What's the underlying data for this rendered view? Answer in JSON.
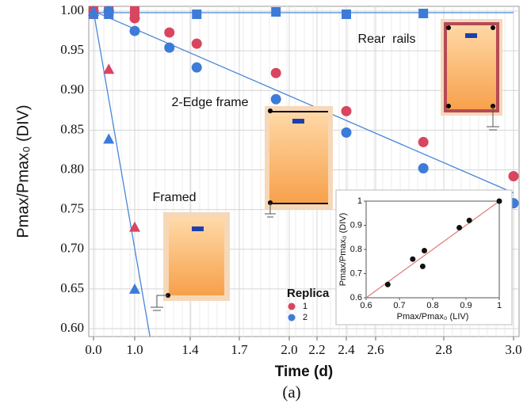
{
  "chart_data": [
    {
      "type": "scatter",
      "y_label": "Pmax/Pmax₀ (DIV)",
      "x_label": "Time (d)",
      "caption": "(a)",
      "xlim": [
        0,
        3
      ],
      "xticks": [
        {
          "value": 0,
          "label": "0.0"
        },
        {
          "value": 1,
          "label": "1.0"
        },
        1.4,
        1.7,
        {
          "value": 2,
          "label": "2.0"
        },
        2.2,
        2.4,
        2.6,
        2.8,
        {
          "value": 3,
          "label": "3.0"
        }
      ],
      "ylim": [
        0.59,
        1.006
      ],
      "yticks": [
        {
          "value": 0.6,
          "label": "0.60"
        },
        0.65,
        {
          "value": 0.7,
          "label": "0.70"
        },
        0.75,
        {
          "value": 0.8,
          "label": "0.80"
        },
        0.85,
        {
          "value": 0.9,
          "label": "0.90"
        },
        0.95,
        {
          "value": 1,
          "label": "1.00"
        }
      ],
      "grid": true,
      "annotations": [
        "Rear  rails",
        "2-Edge frame",
        "Framed"
      ],
      "legend": {
        "title": "Replica",
        "entries": [
          {
            "name": "1",
            "color": "#d9455f"
          },
          {
            "name": "2",
            "color": "#3d7bd8"
          }
        ]
      },
      "series": [
        {
          "marker": "square",
          "color": "#d9455f",
          "x": [
            0,
            0.37,
            1.0
          ],
          "values": [
            1.0,
            1.0,
            1.0
          ]
        },
        {
          "marker": "square",
          "color": "#3d7bd8",
          "x": [
            0,
            0.37,
            1.44,
            1.92,
            2.4,
            2.74
          ],
          "values": [
            0.996,
            0.996,
            0.996,
            0.999,
            0.996,
            0.997
          ]
        },
        {
          "marker": "circle",
          "color": "#d9455f",
          "x": [
            0,
            0.37,
            1.0,
            1.25,
            1.44,
            1.92,
            2.4,
            2.74,
            3.0
          ],
          "values": [
            1.0,
            1.0,
            0.991,
            0.973,
            0.959,
            0.922,
            0.874,
            0.835,
            0.792
          ]
        },
        {
          "marker": "circle",
          "color": "#3d7bd8",
          "x": [
            0.37,
            1.0,
            1.25,
            1.44,
            1.92,
            2.4,
            2.74,
            3.0
          ],
          "values": [
            1.0,
            0.975,
            0.954,
            0.929,
            0.889,
            0.847,
            0.802,
            0.758
          ]
        },
        {
          "marker": "triangle",
          "color": "#d9455f",
          "x": [
            0,
            0.37,
            1.0
          ],
          "values": [
            1.0,
            0.927,
            0.728
          ]
        },
        {
          "marker": "triangle",
          "color": "#3d7bd8",
          "x": [
            0,
            0.37,
            1.0
          ],
          "values": [
            1.0,
            0.839,
            0.65
          ]
        }
      ],
      "lines": [
        {
          "color": "#4a86d8",
          "x": [
            0,
            3.0
          ],
          "values": [
            0.998,
            0.998
          ]
        },
        {
          "color": "#4a86d8",
          "x": [
            0,
            3.0
          ],
          "values": [
            1.0,
            0.771
          ]
        },
        {
          "color": "#4a86d8",
          "x": [
            0,
            1.11
          ],
          "values": [
            1.0,
            0.59
          ]
        }
      ]
    },
    {
      "type": "scatter",
      "y_label": "Pmax/Pmax₀ (DIV)",
      "x_label": "Pmax/Pmax₀ (LIV)",
      "xlim": [
        0.6,
        1
      ],
      "xticks": [
        0.6,
        0.7,
        0.8,
        0.9,
        1
      ],
      "ylim": [
        0.6,
        1
      ],
      "yticks": [
        0.6,
        0.7,
        0.8,
        0.9,
        1
      ],
      "color": "#111111",
      "line_color": "#e07a7a",
      "x": [
        0.665,
        0.74,
        0.775,
        0.77,
        0.88,
        0.91,
        1.0
      ],
      "values": [
        0.655,
        0.76,
        0.795,
        0.73,
        0.89,
        0.92,
        1.0
      ],
      "line": [
        0.6,
        1
      ]
    }
  ]
}
